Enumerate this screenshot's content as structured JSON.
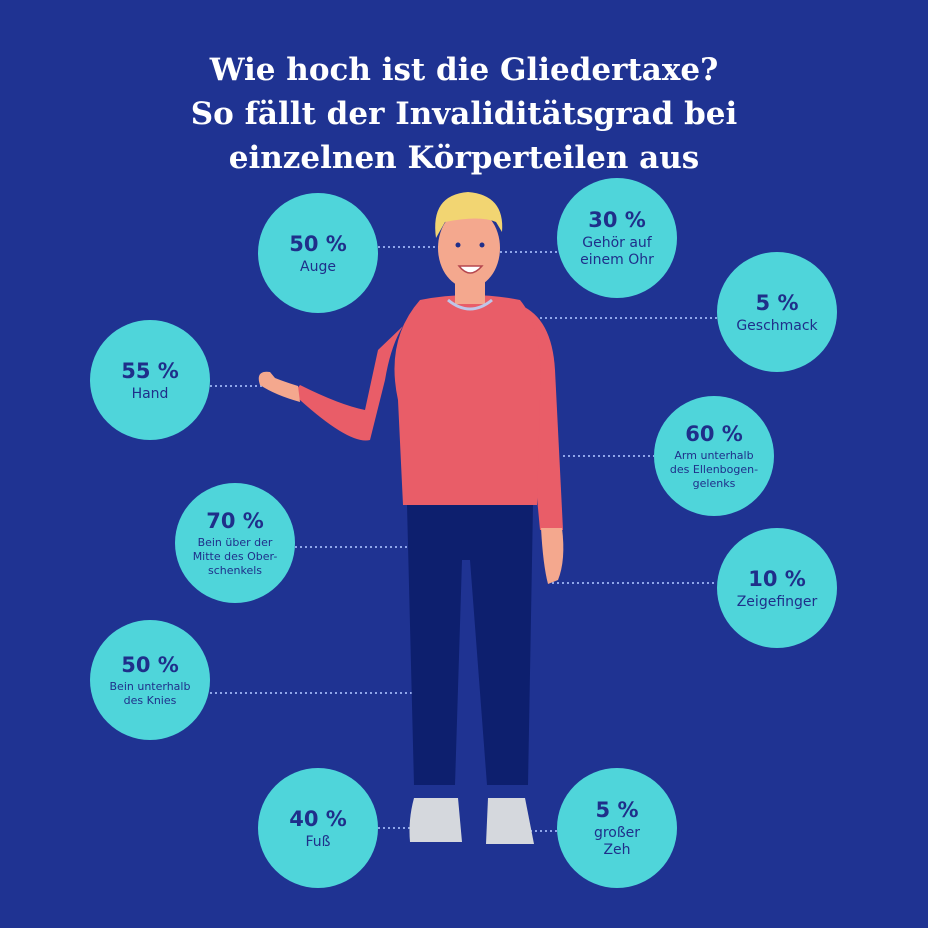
{
  "title": {
    "line1": "Wie hoch ist die Gliedertaxe?",
    "line2": "So fällt der Invaliditätsgrad bei",
    "line3": "einzelnen Körperteilen aus"
  },
  "colors": {
    "background": "#1f3392",
    "bubble": "#4fd5da",
    "bubble_text": "#1f2f8a",
    "shirt": "#e95d68",
    "pants": "#0d1f6e"
  },
  "bubbles": [
    {
      "pct": "50 %",
      "label": "Auge"
    },
    {
      "pct": "30 %",
      "label": "Gehör auf\neinem Ohr"
    },
    {
      "pct": "5 %",
      "label": "Geschmack"
    },
    {
      "pct": "55 %",
      "label": "Hand"
    },
    {
      "pct": "60 %",
      "label": "Arm unterhalb\ndes Ellenbogen-\ngelenks"
    },
    {
      "pct": "70 %",
      "label": "Bein über der\nMitte des Ober-\nschenkels"
    },
    {
      "pct": "10 %",
      "label": "Zeigefinger"
    },
    {
      "pct": "50 %",
      "label": "Bein unterhalb\ndes Knies"
    },
    {
      "pct": "40 %",
      "label": "Fuß"
    },
    {
      "pct": "5 %",
      "label": "großer\nZeh"
    }
  ]
}
